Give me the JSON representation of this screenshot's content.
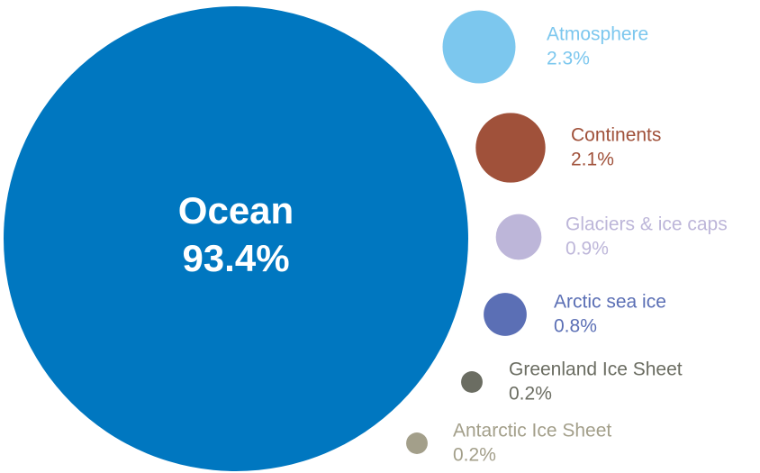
{
  "chart_data": {
    "type": "bubble",
    "categories": [
      "Ocean",
      "Atmosphere",
      "Continents",
      "Glaciers & ice caps",
      "Arctic sea ice",
      "Greenland Ice Sheet",
      "Antarctic Ice Sheet"
    ],
    "values": [
      93.4,
      2.3,
      2.1,
      0.9,
      0.8,
      0.2,
      0.2
    ],
    "value_labels": [
      "93.4%",
      "2.3%",
      "2.1%",
      "0.9%",
      "0.8%",
      "0.2%",
      "0.2%"
    ],
    "colors": [
      "#0077c0",
      "#7cc7ee",
      "#a0513a",
      "#bdb6d9",
      "#5b6fb5",
      "#6b6d62",
      "#a39f8a"
    ]
  }
}
